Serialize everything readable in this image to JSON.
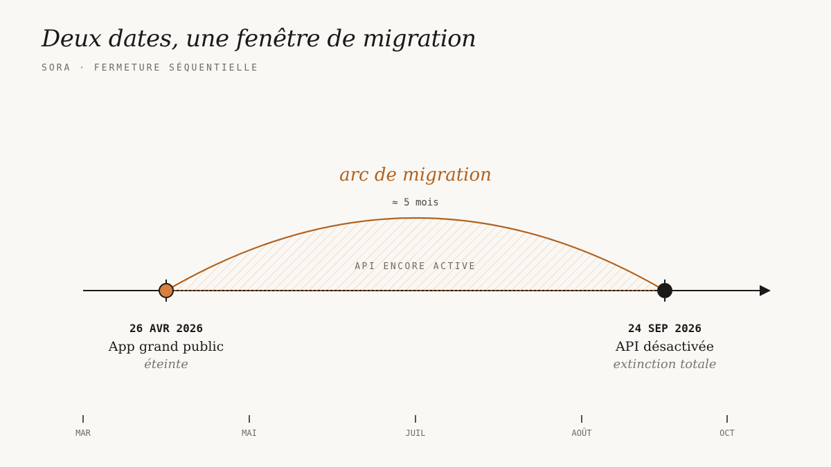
{
  "header": {
    "title": "Deux dates, une fenêtre de migration",
    "subtitle": "SORA · FERMETURE SÉQUENTIELLE"
  },
  "arc": {
    "title": "arc de migration",
    "duration": "≈ 5 mois",
    "inner_label": "API ENCORE ACTIVE"
  },
  "events": [
    {
      "date": "26 AVR 2026",
      "label": "App grand public",
      "sublabel": "éteinte",
      "color": "#d9803e"
    },
    {
      "date": "24 SEP 2026",
      "label": "API désactivée",
      "sublabel": "extinction totale",
      "color": "#1c1a18"
    }
  ],
  "months": [
    "MAR",
    "MAI",
    "JUIL",
    "AOÛT",
    "OCT"
  ],
  "colors": {
    "accent": "#b0621f",
    "axis": "#1c1a18",
    "background": "#faf8f4",
    "muted": "#6e6a64"
  }
}
